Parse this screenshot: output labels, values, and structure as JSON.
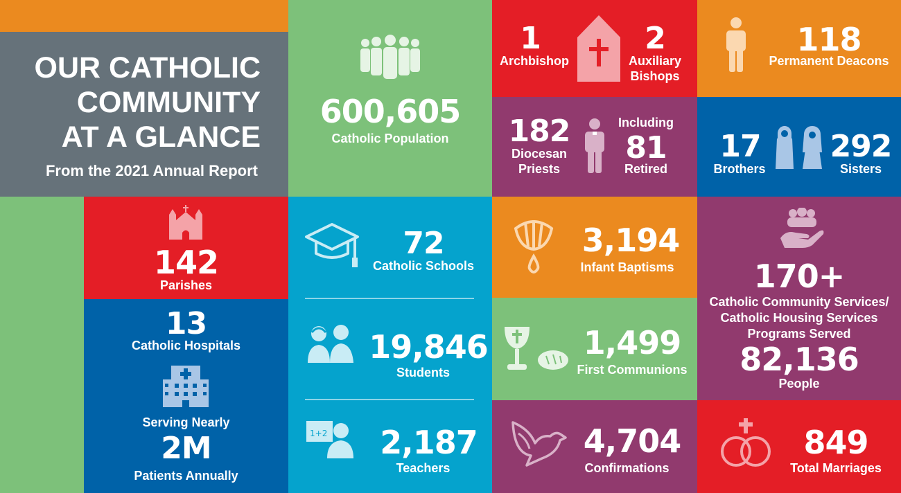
{
  "header": {
    "title_line1": "OUR CATHOLIC",
    "title_line2": "COMMUNITY",
    "title_line3": "AT A GLANCE",
    "subtitle": "From the 2021 Annual Report"
  },
  "population": {
    "value": "600,605",
    "label": "Catholic Population"
  },
  "bishops": {
    "archbishop_value": "1",
    "archbishop_label": "Archbishop",
    "auxiliary_value": "2",
    "auxiliary_label_line1": "Auxiliary",
    "auxiliary_label_line2": "Bishops"
  },
  "deacons": {
    "value": "118",
    "label": "Permanent Deacons"
  },
  "priests": {
    "value": "182",
    "label_line1": "Diocesan",
    "label_line2": "Priests",
    "including_label": "Including",
    "retired_value": "81",
    "retired_label": "Retired"
  },
  "religious": {
    "brothers_value": "17",
    "brothers_label": "Brothers",
    "sisters_value": "292",
    "sisters_label": "Sisters"
  },
  "parishes": {
    "value": "142",
    "label": "Parishes"
  },
  "hospitals": {
    "value": "13",
    "label": "Catholic Hospitals",
    "serving_label": "Serving Nearly",
    "patients_value": "2M",
    "patients_label": "Patients Annually"
  },
  "schools": {
    "value": "72",
    "label": "Catholic Schools"
  },
  "students": {
    "value": "19,846",
    "label": "Students"
  },
  "teachers": {
    "value": "2,187",
    "label": "Teachers",
    "board_text": "1+2"
  },
  "baptisms": {
    "value": "3,194",
    "label": "Infant Baptisms"
  },
  "communions": {
    "value": "1,499",
    "label": "First Communions"
  },
  "confirmations": {
    "value": "4,704",
    "label": "Confirmations"
  },
  "services": {
    "value": "170+",
    "label_line1": "Catholic Community Services/",
    "label_line2": "Catholic Housing Services",
    "label_line3": "Programs Served",
    "people_value": "82,136",
    "people_label": "People"
  },
  "marriages": {
    "value": "849",
    "label": "Total Marriages"
  },
  "colors": {
    "orange": "#EB8A1F",
    "gray": "#66727A",
    "green": "#7DC17A",
    "red": "#E41E26",
    "purple": "#913A6E",
    "blue": "#0062A8",
    "cyan": "#05A3CD"
  }
}
